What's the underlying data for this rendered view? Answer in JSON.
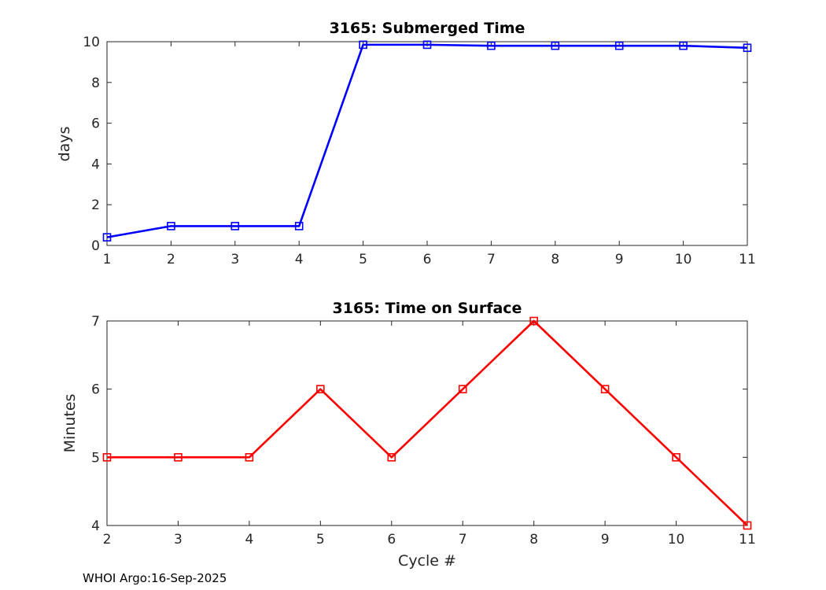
{
  "footer": {
    "credit": "WHOI Argo:16-Sep-2025"
  },
  "chart_data": [
    {
      "type": "line",
      "title": "3165: Submerged Time",
      "xlabel": "",
      "ylabel": "days",
      "x": [
        1,
        2,
        3,
        4,
        5,
        6,
        7,
        8,
        9,
        10,
        11
      ],
      "values": [
        0.4,
        0.95,
        0.95,
        0.95,
        9.85,
        9.85,
        9.8,
        9.8,
        9.8,
        9.8,
        9.7
      ],
      "xlim": [
        1,
        11
      ],
      "ylim": [
        0,
        10
      ],
      "xticks": [
        1,
        2,
        3,
        4,
        5,
        6,
        7,
        8,
        9,
        10,
        11
      ],
      "yticks": [
        0,
        2,
        4,
        6,
        8,
        10
      ],
      "color": "#0000ff",
      "marker": "square",
      "grid": "off",
      "legend": "none"
    },
    {
      "type": "line",
      "title": "3165: Time on Surface",
      "xlabel": "Cycle #",
      "ylabel": "Minutes",
      "x": [
        2,
        3,
        4,
        5,
        6,
        7,
        8,
        9,
        10,
        11
      ],
      "values": [
        5,
        5,
        5,
        6,
        5,
        6,
        7,
        6,
        5,
        4
      ],
      "xlim": [
        2,
        11
      ],
      "ylim": [
        4,
        7
      ],
      "xticks": [
        2,
        3,
        4,
        5,
        6,
        7,
        8,
        9,
        10,
        11
      ],
      "yticks": [
        4,
        5,
        6,
        7
      ],
      "color": "#ff0000",
      "marker": "square",
      "grid": "off",
      "legend": "none"
    }
  ]
}
